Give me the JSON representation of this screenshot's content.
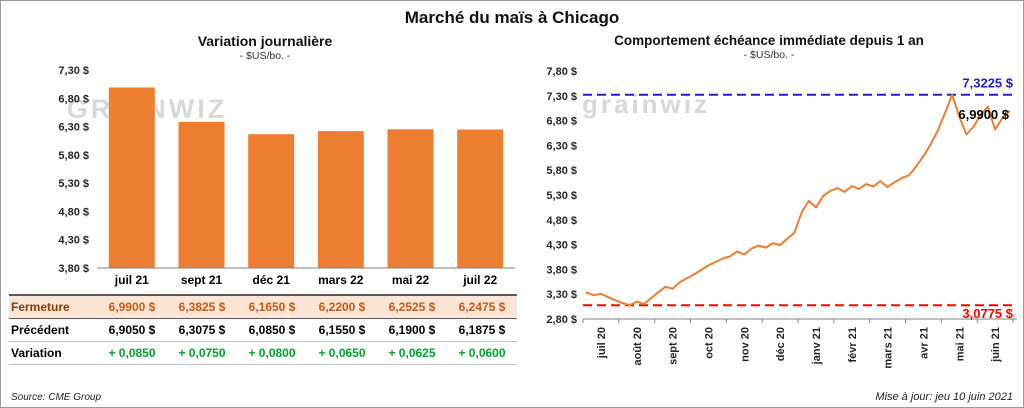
{
  "title": "Marché du maïs à Chicago",
  "colors": {
    "bar": "#ED7D31",
    "line": "#ED7D31",
    "max_line": "#2020C8",
    "min_line": "#FF0000",
    "variation_text": "#00A32E",
    "fermeture_bg": "#FBE5D6",
    "fermeture_text": "#C55A11",
    "watermark": "#D8D8D8",
    "axis": "#808080",
    "tick_text": "#262626"
  },
  "table": {
    "rows": [
      {
        "label": "Fermeture",
        "class": "row-fermeture",
        "values": [
          "6,9900 $",
          "6,3825 $",
          "6,1650 $",
          "6,2200 $",
          "6,2525 $",
          "6,2475 $"
        ]
      },
      {
        "label": "Précédent",
        "class": "row-precedent",
        "values": [
          "6,9050 $",
          "6,3075 $",
          "6,0850 $",
          "6,1550 $",
          "6,1900 $",
          "6,1875 $"
        ]
      },
      {
        "label": "Variation",
        "class": "row-variation",
        "values": [
          "+ 0,0850",
          "+ 0,0750",
          "+ 0,0800",
          "+ 0,0650",
          "+ 0,0625",
          "+ 0,0600"
        ]
      }
    ]
  },
  "chart_data": [
    {
      "type": "bar",
      "title": "Variation journalière",
      "subtitle": "- $US/bo. -",
      "source": "Source: CME Group",
      "watermark": "GRAINWIZ",
      "categories": [
        "juil 21",
        "sept 21",
        "déc 21",
        "mars 22",
        "mai 22",
        "juil 22"
      ],
      "values": [
        6.99,
        6.3825,
        6.165,
        6.22,
        6.2525,
        6.2475
      ],
      "ylim": [
        3.8,
        7.3
      ],
      "ytick_step": 0.5,
      "ytick_labels": [
        "7,30 $",
        "6,80 $",
        "6,30 $",
        "5,80 $",
        "5,30 $",
        "4,80 $",
        "4,30 $",
        "3,80 $"
      ],
      "bar_color": "#ED7D31",
      "grid": false,
      "legend": "none"
    },
    {
      "type": "line",
      "title": "Comportement échéance immédiate depuis 1 an",
      "subtitle": "- $US/bo. -",
      "updated": "Mise à jour: jeu 10 juin 2021",
      "watermark": "grainwiz",
      "x_labels": [
        "juil 20",
        "août 20",
        "sept 20",
        "oct 20",
        "nov 20",
        "déc 20",
        "janv 21",
        "févr 21",
        "mars 21",
        "avr 21",
        "mai 21",
        "juin 21"
      ],
      "values": [
        3.33,
        3.28,
        3.31,
        3.24,
        3.18,
        3.12,
        3.08,
        3.15,
        3.1,
        3.22,
        3.34,
        3.45,
        3.41,
        3.54,
        3.62,
        3.7,
        3.79,
        3.88,
        3.95,
        4.02,
        4.06,
        4.16,
        4.1,
        4.22,
        4.28,
        4.24,
        4.33,
        4.29,
        4.42,
        4.54,
        4.95,
        5.18,
        5.05,
        5.28,
        5.38,
        5.44,
        5.36,
        5.48,
        5.42,
        5.52,
        5.47,
        5.58,
        5.46,
        5.56,
        5.64,
        5.7,
        5.88,
        6.08,
        6.32,
        6.6,
        6.95,
        7.32,
        6.88,
        6.52,
        6.68,
        6.92,
        7.08,
        6.62,
        6.85,
        6.99
      ],
      "ylim": [
        2.8,
        7.8
      ],
      "ytick_step": 0.5,
      "ytick_labels": [
        "7,80 $",
        "7,30 $",
        "6,80 $",
        "6,30 $",
        "5,80 $",
        "5,30 $",
        "4,80 $",
        "4,30 $",
        "3,80 $",
        "3,30 $",
        "2,80 $"
      ],
      "line_color": "#ED7D31",
      "grid": false,
      "legend": "none",
      "annotations": [
        {
          "type": "hline",
          "name": "max-line",
          "value": 7.3225,
          "label": "7,3225 $",
          "color": "#2020C8",
          "label_position": "above"
        },
        {
          "type": "hline",
          "name": "min-line",
          "value": 3.0775,
          "label": "3,0775 $",
          "color": "#FF0000",
          "label_position": "below"
        },
        {
          "type": "point",
          "name": "last-price-label",
          "value": 6.99,
          "label": "6,9900 $",
          "color": "#000000"
        }
      ]
    }
  ]
}
